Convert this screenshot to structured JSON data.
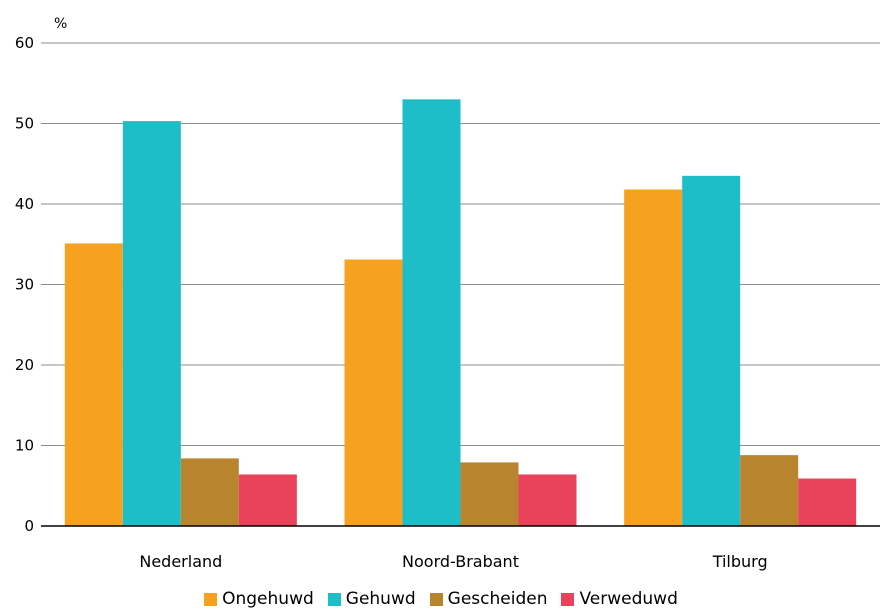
{
  "chart_data": {
    "type": "bar",
    "ylabel": "%",
    "ylim": [
      0,
      60
    ],
    "yticks": [
      "0",
      "10",
      "20",
      "30",
      "40",
      "50",
      "60"
    ],
    "grid": true,
    "legend_position": "bottom",
    "categories": [
      "Nederland",
      "Noord-Brabant",
      "Tilburg"
    ],
    "series": [
      {
        "name": "Ongehuwd",
        "color": "#f6a21f",
        "values": [
          35.1,
          33.1,
          41.8
        ]
      },
      {
        "name": "Gehuwd",
        "color": "#1ebec8",
        "values": [
          50.3,
          53.0,
          43.5
        ]
      },
      {
        "name": "Gescheiden",
        "color": "#b8852e",
        "values": [
          8.4,
          7.9,
          8.8
        ]
      },
      {
        "name": "Verweduwd",
        "color": "#e8435a",
        "values": [
          6.4,
          6.4,
          5.9
        ]
      }
    ]
  }
}
